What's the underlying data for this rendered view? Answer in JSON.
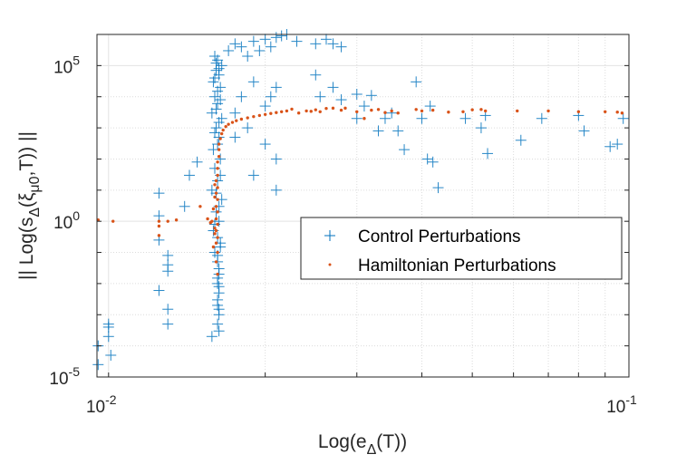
{
  "chart_data": {
    "type": "scatter",
    "title": "",
    "xlabel": {
      "main": "Log(e",
      "sub": "Δ",
      "rest": "(T))"
    },
    "ylabel": {
      "main": "|| Log(s",
      "sub": "Δ",
      "mid": "(ξ",
      "sub2": "μ0",
      "rest": ",T)) ||"
    },
    "xscale": "log",
    "yscale": "log",
    "xlim": [
      0.0095,
      0.1
    ],
    "ylim": [
      1e-05,
      1000000.0
    ],
    "grid": true,
    "legend_position": "center-right",
    "x_ticks": [
      {
        "v": 0.01,
        "base": "10",
        "exp": "-2"
      },
      {
        "v": 0.1,
        "base": "10",
        "exp": "-1"
      }
    ],
    "y_ticks": [
      {
        "v": 1e-05,
        "base": "10",
        "exp": "-5"
      },
      {
        "v": 1,
        "base": "10",
        "exp": "0"
      },
      {
        "v": 100000.0,
        "base": "10",
        "exp": "5"
      }
    ],
    "series": [
      {
        "name": "Control Perturbations",
        "marker": "plus",
        "color": "#0072BD",
        "points": [
          [
            0.016,
            200000.0
          ],
          [
            0.0162,
            150000.0
          ],
          [
            0.0165,
            100000.0
          ],
          [
            0.0161,
            70000.0
          ],
          [
            0.0163,
            50000.0
          ],
          [
            0.0159,
            30000.0
          ],
          [
            0.0164,
            20000.0
          ],
          [
            0.016,
            10000.0
          ],
          [
            0.0162,
            6000.0
          ],
          [
            0.0158,
            3000.0
          ],
          [
            0.0165,
            2000.0
          ],
          [
            0.0161,
            1000.0
          ],
          [
            0.0163,
            500
          ],
          [
            0.0159,
            200
          ],
          [
            0.0164,
            100
          ],
          [
            0.016,
            50
          ],
          [
            0.0162,
            20
          ],
          [
            0.0158,
            10
          ],
          [
            0.0165,
            5
          ],
          [
            0.0161,
            2
          ],
          [
            0.0163,
            1
          ],
          [
            0.0159,
            0.5
          ],
          [
            0.0164,
            0.2
          ],
          [
            0.016,
            0.1
          ],
          [
            0.0162,
            0.05
          ],
          [
            0.0163,
            0.02
          ],
          [
            0.0162,
            0.01
          ],
          [
            0.0163,
            0.005
          ],
          [
            0.0162,
            0.002
          ],
          [
            0.0163,
            0.001
          ],
          [
            0.0162,
            0.0005
          ],
          [
            0.0163,
            0.0003
          ],
          [
            0.0161,
            120000.0
          ],
          [
            0.0163,
            80000.0
          ],
          [
            0.016,
            40000.0
          ],
          [
            0.0162,
            15000.0
          ],
          [
            0.0164,
            8000.0
          ],
          [
            0.0161,
            4000.0
          ],
          [
            0.0163,
            1500.0
          ],
          [
            0.016,
            700
          ],
          [
            0.0162,
            300
          ],
          [
            0.0164,
            30
          ],
          [
            0.0161,
            8
          ],
          [
            0.0163,
            3
          ],
          [
            0.016,
            0.8
          ],
          [
            0.0162,
            0.3
          ],
          [
            0.0164,
            0.15
          ],
          [
            0.0162,
            0.08
          ],
          [
            0.0163,
            0.03
          ],
          [
            0.0162,
            0.015
          ],
          [
            0.0163,
            0.008
          ],
          [
            0.0162,
            0.003
          ],
          [
            0.0163,
            0.0015
          ],
          [
            0.0158,
            0.0002
          ],
          [
            0.017,
            300000.0
          ],
          [
            0.0175,
            500000.0
          ],
          [
            0.018,
            400000.0
          ],
          [
            0.019,
            600000.0
          ],
          [
            0.02,
            700000.0
          ],
          [
            0.021,
            800000.0
          ],
          [
            0.0215,
            900000.0
          ],
          [
            0.022,
            1000000.0
          ],
          [
            0.0185,
            200000.0
          ],
          [
            0.0195,
            300000.0
          ],
          [
            0.0205,
            400000.0
          ],
          [
            0.023,
            600000.0
          ],
          [
            0.025,
            500000.0
          ],
          [
            0.0262,
            700000.0
          ],
          [
            0.027,
            500000.0
          ],
          [
            0.028,
            400000.0
          ],
          [
            0.019,
            30000.0
          ],
          [
            0.0205,
            10000.0
          ],
          [
            0.02,
            5000.0
          ],
          [
            0.021,
            20000.0
          ],
          [
            0.018,
            10000.0
          ],
          [
            0.0175,
            3000.0
          ],
          [
            0.0185,
            1000.0
          ],
          [
            0.02,
            300
          ],
          [
            0.021,
            100
          ],
          [
            0.019,
            30
          ],
          [
            0.021,
            10
          ],
          [
            0.0175,
            500
          ],
          [
            0.025,
            50000.0
          ],
          [
            0.027,
            20000.0
          ],
          [
            0.0255,
            10000.0
          ],
          [
            0.028,
            8000.0
          ],
          [
            0.03,
            12000.0
          ],
          [
            0.031,
            5000.0
          ],
          [
            0.032,
            11000.0
          ],
          [
            0.03,
            2000.0
          ],
          [
            0.033,
            800
          ],
          [
            0.034,
            2000.0
          ],
          [
            0.035,
            3000.0
          ],
          [
            0.036,
            800
          ],
          [
            0.037,
            200
          ],
          [
            0.039,
            30000.0
          ],
          [
            0.04,
            2000.0
          ],
          [
            0.0415,
            5000.0
          ],
          [
            0.041,
            100
          ],
          [
            0.042,
            80
          ],
          [
            0.043,
            12
          ],
          [
            0.0485,
            2000.0
          ],
          [
            0.052,
            1000.0
          ],
          [
            0.053,
            2500.0
          ],
          [
            0.0535,
            150
          ],
          [
            0.062,
            400
          ],
          [
            0.068,
            2000.0
          ],
          [
            0.08,
            2500.0
          ],
          [
            0.082,
            800
          ],
          [
            0.092,
            250
          ],
          [
            0.095,
            300
          ],
          [
            0.0975,
            2000.0
          ],
          [
            0.0125,
            8
          ],
          [
            0.0125,
            1.5
          ],
          [
            0.0125,
            0.25
          ],
          [
            0.0125,
            0.006
          ],
          [
            0.013,
            0.08
          ],
          [
            0.013,
            0.04
          ],
          [
            0.013,
            0.025
          ],
          [
            0.013,
            0.0015
          ],
          [
            0.013,
            0.0005
          ],
          [
            0.0143,
            30
          ],
          [
            0.014,
            3
          ],
          [
            0.0148,
            80
          ],
          [
            0.01,
            0.0005
          ],
          [
            0.01,
            0.0002
          ],
          [
            0.01,
            0.0004
          ],
          [
            0.0101,
            5e-05
          ],
          [
            0.00955,
            0.0001
          ],
          [
            0.00955,
            2.5e-05
          ]
        ]
      },
      {
        "name": "Hamiltonian Perturbations",
        "marker": "dot",
        "color": "#D95319",
        "points": [
          [
            0.0162,
            0.02
          ],
          [
            0.0161,
            0.05
          ],
          [
            0.0162,
            0.1
          ],
          [
            0.0161,
            0.2
          ],
          [
            0.0162,
            0.3
          ],
          [
            0.0161,
            0.5
          ],
          [
            0.0162,
            0.8
          ],
          [
            0.0161,
            1.2
          ],
          [
            0.0162,
            2
          ],
          [
            0.0161,
            3
          ],
          [
            0.0162,
            5
          ],
          [
            0.0161,
            8
          ],
          [
            0.0162,
            12
          ],
          [
            0.0161,
            20
          ],
          [
            0.0162,
            30
          ],
          [
            0.0162,
            50
          ],
          [
            0.0162,
            80
          ],
          [
            0.0163,
            120
          ],
          [
            0.0163,
            200
          ],
          [
            0.0163,
            300
          ],
          [
            0.0164,
            450
          ],
          [
            0.0165,
            650
          ],
          [
            0.0166,
            850
          ],
          [
            0.0168,
            1100
          ],
          [
            0.017,
            1300
          ],
          [
            0.0173,
            1500
          ],
          [
            0.0176,
            1700
          ],
          [
            0.018,
            1900
          ],
          [
            0.0185,
            2100
          ],
          [
            0.019,
            2300
          ],
          [
            0.0195,
            2500
          ],
          [
            0.02,
            2700
          ],
          [
            0.0205,
            2900
          ],
          [
            0.021,
            3100
          ],
          [
            0.0215,
            3300
          ],
          [
            0.022,
            3500
          ],
          [
            0.0225,
            4000
          ],
          [
            0.0232,
            3000
          ],
          [
            0.016,
            0.4
          ],
          [
            0.0159,
            0.15
          ],
          [
            0.016,
            0.6
          ],
          [
            0.0158,
            1.0
          ],
          [
            0.0159,
            2.5
          ],
          [
            0.016,
            6
          ],
          [
            0.016,
            15
          ],
          [
            0.024,
            3500
          ],
          [
            0.0245,
            3400
          ],
          [
            0.025,
            3800
          ],
          [
            0.0255,
            3300
          ],
          [
            0.0262,
            4200
          ],
          [
            0.027,
            4300
          ],
          [
            0.028,
            3700
          ],
          [
            0.0285,
            4300
          ],
          [
            0.03,
            3300
          ],
          [
            0.031,
            2000
          ],
          [
            0.032,
            3700
          ],
          [
            0.033,
            3900
          ],
          [
            0.034,
            3100
          ],
          [
            0.035,
            3500
          ],
          [
            0.036,
            3000
          ],
          [
            0.039,
            3900
          ],
          [
            0.04,
            3500
          ],
          [
            0.042,
            3700
          ],
          [
            0.045,
            3200
          ],
          [
            0.048,
            3300
          ],
          [
            0.05,
            3800
          ],
          [
            0.052,
            3900
          ],
          [
            0.053,
            3500
          ],
          [
            0.061,
            3500
          ],
          [
            0.07,
            3500
          ],
          [
            0.08,
            3300
          ],
          [
            0.09,
            3300
          ],
          [
            0.095,
            3200
          ],
          [
            0.097,
            3000
          ],
          [
            0.00955,
            1.1
          ],
          [
            0.0102,
            1.0
          ],
          [
            0.0125,
            1.0
          ],
          [
            0.0125,
            0.7
          ],
          [
            0.0125,
            0.35
          ],
          [
            0.013,
            1.0
          ],
          [
            0.0135,
            1.1
          ],
          [
            0.015,
            3
          ],
          [
            0.0155,
            1.2
          ],
          [
            0.0157,
            0.9
          ]
        ]
      }
    ]
  }
}
